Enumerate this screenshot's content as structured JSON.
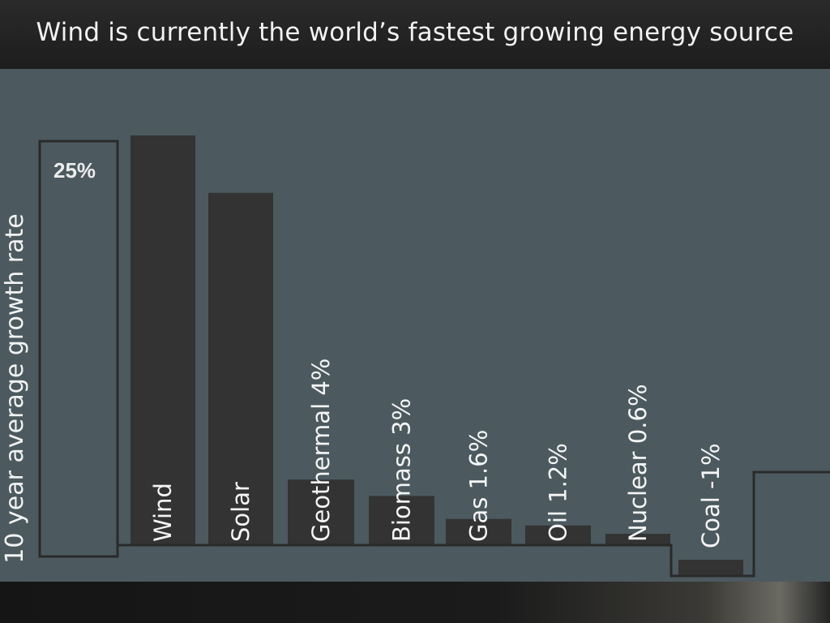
{
  "slide": {
    "title": "Wind is currently the world’s fastest growing energy source"
  },
  "colors": {
    "panel": "#4c5a5f",
    "bar": "#333333",
    "outline": "#2a2a2a",
    "text": "#f2f2f2"
  },
  "chart_data": {
    "type": "bar",
    "ylabel": "10 year average growth rate",
    "categories": [
      "Wind",
      "Solar",
      "Geothermal",
      "Biomass",
      "Gas",
      "Oil",
      "Nuclear",
      "Coal"
    ],
    "bar_labels": [
      "Wind",
      "Solar",
      "Geothermal  4%",
      "Biomass 3%",
      "Gas 1.6%",
      "Oil 1.2%",
      "Nuclear 0.6%",
      "Coal -1%"
    ],
    "values": [
      25,
      21.5,
      4,
      3,
      1.6,
      1.2,
      0.6,
      -1
    ],
    "reference_box_value": 25,
    "reference_box_label": "25%",
    "grid": false,
    "legend": "none"
  }
}
